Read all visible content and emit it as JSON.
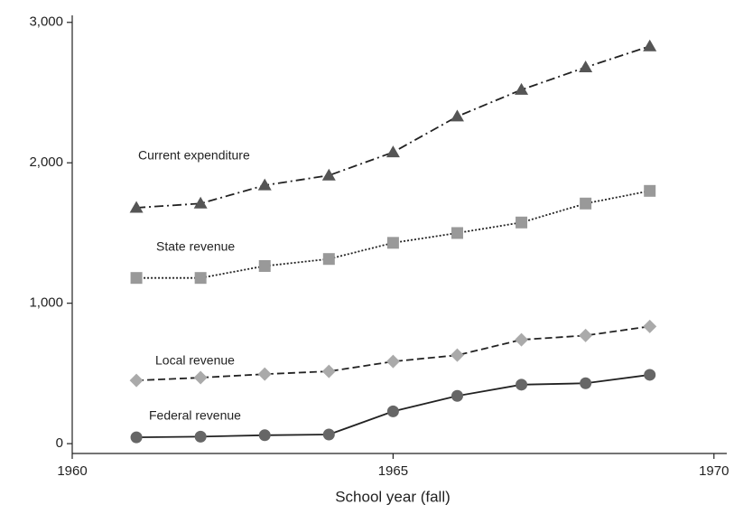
{
  "chart_data": {
    "type": "line",
    "x_label": "School year (fall)",
    "x": [
      1961,
      1962,
      1963,
      1964,
      1965,
      1966,
      1967,
      1968,
      1969
    ],
    "series": [
      {
        "name": "Current expenditure",
        "color": "#555555",
        "marker": "triangle",
        "line_style": "dashdot",
        "values": [
          1680,
          1710,
          1840,
          1910,
          2075,
          2330,
          2520,
          2680,
          2830
        ]
      },
      {
        "name": "State revenue",
        "color": "#999999",
        "marker": "square",
        "line_style": "dotted",
        "values": [
          1180,
          1180,
          1265,
          1315,
          1430,
          1500,
          1575,
          1710,
          1800
        ]
      },
      {
        "name": "Local revenue",
        "color": "#aaaaaa",
        "marker": "diamond",
        "line_style": "dashed",
        "values": [
          450,
          470,
          495,
          515,
          585,
          630,
          740,
          770,
          835
        ]
      },
      {
        "name": "Federal revenue",
        "color": "#666666",
        "marker": "circle",
        "line_style": "solid",
        "values": [
          45,
          50,
          60,
          65,
          230,
          340,
          420,
          430,
          490
        ]
      }
    ],
    "xlim": [
      1960,
      1970.2
    ],
    "xticks": [
      1960,
      1965,
      1970
    ],
    "ylim": [
      -70,
      3050
    ],
    "yticks": [
      0,
      {
        "value": 1000,
        "label": "1,000"
      },
      {
        "value": 2000,
        "label": "2,000"
      },
      {
        "value": 3000,
        "label": "3,000"
      }
    ],
    "grid": false
  }
}
